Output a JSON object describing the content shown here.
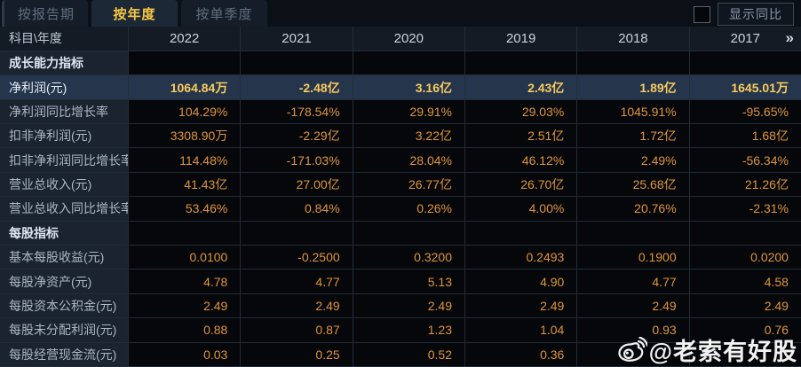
{
  "tabs": [
    {
      "label": "按报告期",
      "active": false
    },
    {
      "label": "按年度",
      "active": true
    },
    {
      "label": "按单季度",
      "active": false
    }
  ],
  "controls": {
    "show_yoy_label": "显示同比",
    "checkbox_checked": false
  },
  "table": {
    "corner_label": "科目\\年度",
    "years": [
      "2022",
      "2021",
      "2020",
      "2019",
      "2018",
      "2017"
    ],
    "more_icon": "»",
    "rows": [
      {
        "type": "section",
        "label": "成长能力指标",
        "highlight": false,
        "values": [
          "",
          "",
          "",
          "",
          "",
          ""
        ]
      },
      {
        "type": "data",
        "label": "净利润(元)",
        "highlight": true,
        "values": [
          "1064.84万",
          "-2.48亿",
          "3.16亿",
          "2.43亿",
          "1.89亿",
          "1645.01万"
        ]
      },
      {
        "type": "data",
        "label": "净利润同比增长率",
        "highlight": false,
        "values": [
          "104.29%",
          "-178.54%",
          "29.91%",
          "29.03%",
          "1045.91%",
          "-95.65%"
        ]
      },
      {
        "type": "data",
        "label": "扣非净利润(元)",
        "highlight": false,
        "values": [
          "3308.90万",
          "-2.29亿",
          "3.22亿",
          "2.51亿",
          "1.72亿",
          "1.68亿"
        ]
      },
      {
        "type": "data",
        "label": "扣非净利润同比增长率",
        "highlight": false,
        "values": [
          "114.48%",
          "-171.03%",
          "28.04%",
          "46.12%",
          "2.49%",
          "-56.34%"
        ]
      },
      {
        "type": "data",
        "label": "营业总收入(元)",
        "highlight": false,
        "values": [
          "41.43亿",
          "27.00亿",
          "26.77亿",
          "26.70亿",
          "25.68亿",
          "21.26亿"
        ]
      },
      {
        "type": "data",
        "label": "营业总收入同比增长率",
        "highlight": false,
        "values": [
          "53.46%",
          "0.84%",
          "0.26%",
          "4.00%",
          "20.76%",
          "-2.31%"
        ]
      },
      {
        "type": "section",
        "label": "每股指标",
        "highlight": false,
        "values": [
          "",
          "",
          "",
          "",
          "",
          ""
        ]
      },
      {
        "type": "data",
        "label": "基本每股收益(元)",
        "highlight": false,
        "values": [
          "0.0100",
          "-0.2500",
          "0.3200",
          "0.2493",
          "0.1900",
          "0.0200"
        ]
      },
      {
        "type": "data",
        "label": "每股净资产(元)",
        "highlight": false,
        "values": [
          "4.78",
          "4.77",
          "5.13",
          "4.90",
          "4.77",
          "4.58"
        ]
      },
      {
        "type": "data",
        "label": "每股资本公积金(元)",
        "highlight": false,
        "values": [
          "2.49",
          "2.49",
          "2.49",
          "2.49",
          "2.49",
          "2.49"
        ]
      },
      {
        "type": "data",
        "label": "每股未分配利润(元)",
        "highlight": false,
        "values": [
          "0.88",
          "0.87",
          "1.23",
          "1.04",
          "0.93",
          "0.76"
        ]
      },
      {
        "type": "data",
        "label": "每股经营现金流(元)",
        "highlight": false,
        "values": [
          "0.03",
          "0.25",
          "0.52",
          "0.36",
          "",
          ""
        ]
      }
    ]
  },
  "watermark": {
    "handle": "@老索有好股"
  },
  "colors": {
    "accent_gold": "#f7c843",
    "value_orange": "#e0953a",
    "highlight_row_bg": "#25354b",
    "label_column_bg": "#1a232e",
    "data_cell_bg": "#05070a"
  }
}
